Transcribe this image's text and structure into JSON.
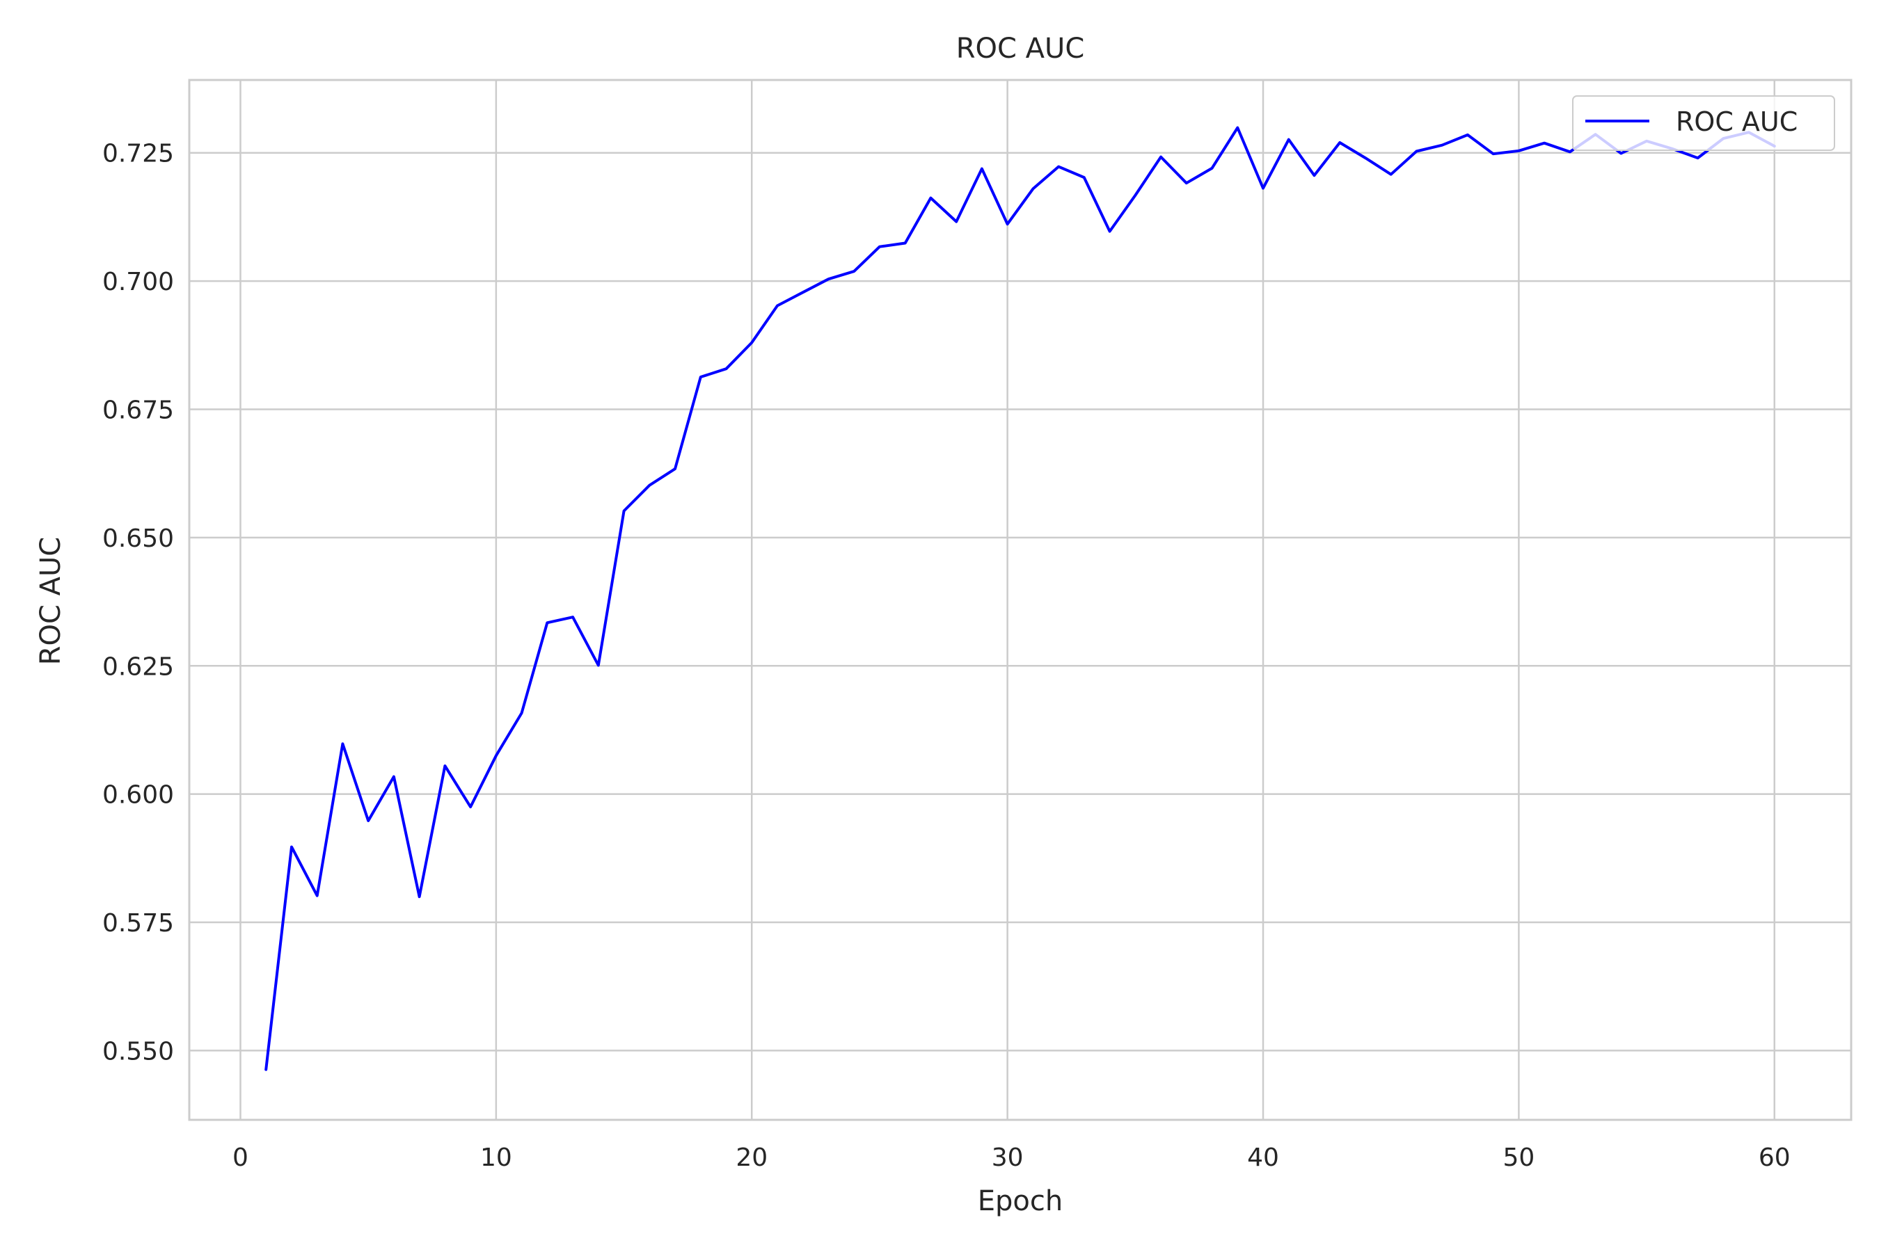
{
  "chart_data": {
    "type": "line",
    "title": "ROC AUC",
    "xlabel": "Epoch",
    "ylabel": "ROC AUC",
    "xlim": [
      -2,
      63
    ],
    "ylim": [
      0.5365,
      0.7392
    ],
    "x_ticks": [
      0,
      10,
      20,
      30,
      40,
      50,
      60
    ],
    "y_ticks": [
      0.55,
      0.575,
      0.6,
      0.625,
      0.65,
      0.675,
      0.7,
      0.725
    ],
    "x_tick_labels": [
      "0",
      "10",
      "20",
      "30",
      "40",
      "50",
      "60"
    ],
    "y_tick_labels": [
      "0.550",
      "0.575",
      "0.600",
      "0.625",
      "0.650",
      "0.675",
      "0.700",
      "0.725"
    ],
    "grid": true,
    "legend_position": "top-right",
    "series": [
      {
        "name": "ROC AUC",
        "color": "#0000ff",
        "x": [
          1,
          2,
          3,
          4,
          5,
          6,
          7,
          8,
          9,
          10,
          11,
          12,
          13,
          14,
          15,
          16,
          17,
          18,
          19,
          20,
          21,
          22,
          23,
          24,
          25,
          26,
          27,
          28,
          29,
          30,
          31,
          32,
          33,
          34,
          35,
          36,
          37,
          38,
          39,
          40,
          41,
          42,
          43,
          44,
          45,
          46,
          47,
          48,
          49,
          50,
          51,
          52,
          53,
          54,
          55,
          56,
          57,
          58,
          59,
          60
        ],
        "y": [
          0.5463,
          0.5897,
          0.5802,
          0.6098,
          0.5948,
          0.6034,
          0.58,
          0.6055,
          0.5975,
          0.6075,
          0.6158,
          0.6334,
          0.6345,
          0.6251,
          0.6552,
          0.6602,
          0.6634,
          0.6813,
          0.6829,
          0.688,
          0.6952,
          0.6978,
          0.7004,
          0.7019,
          0.7067,
          0.7074,
          0.7162,
          0.7116,
          0.7219,
          0.7111,
          0.718,
          0.7223,
          0.7202,
          0.7097,
          0.7167,
          0.7242,
          0.7191,
          0.722,
          0.7299,
          0.7181,
          0.7276,
          0.7206,
          0.727,
          0.724,
          0.7208,
          0.7253,
          0.7265,
          0.7285,
          0.7248,
          0.7254,
          0.7269,
          0.7252,
          0.7286,
          0.7249,
          0.7273,
          0.7258,
          0.724,
          0.7278,
          0.729,
          0.7263
        ]
      }
    ]
  }
}
